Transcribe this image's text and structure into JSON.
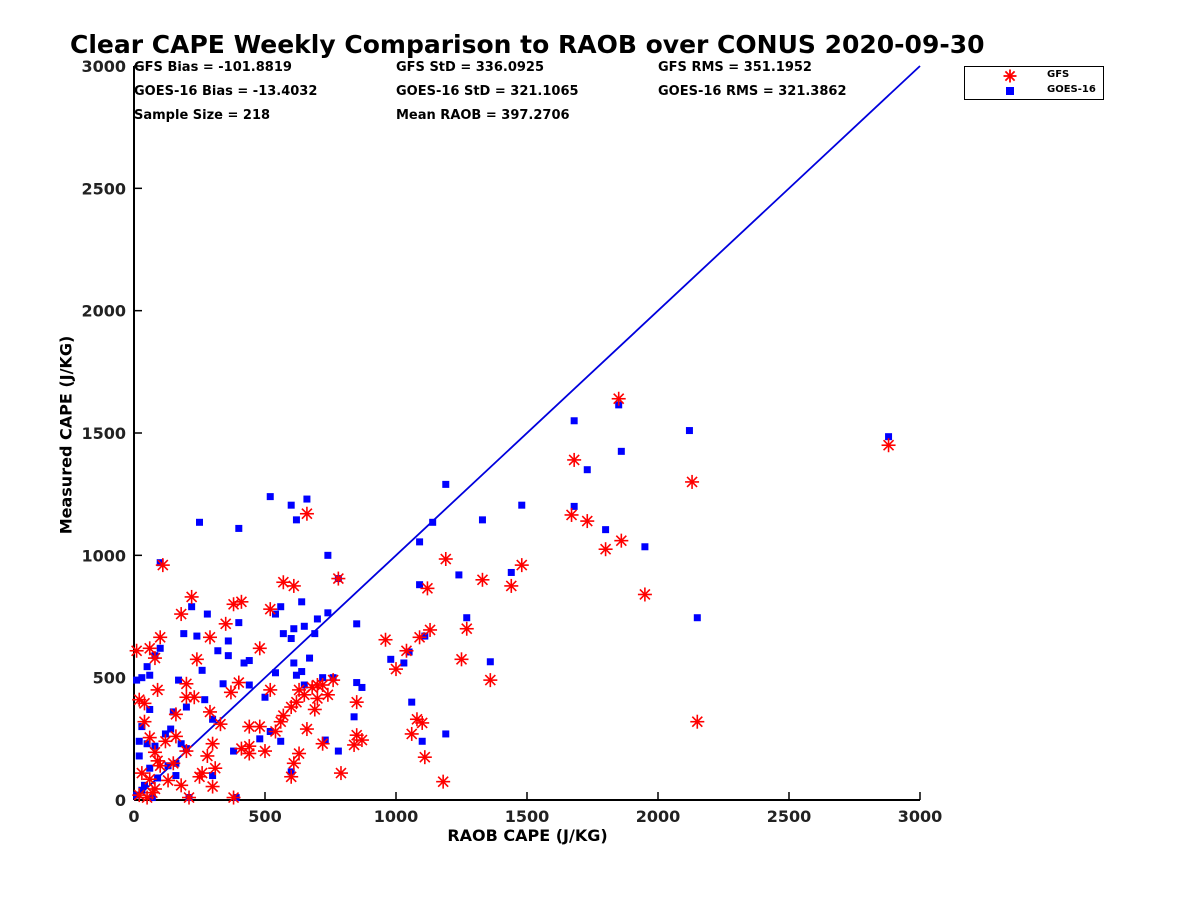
{
  "chart_data": {
    "type": "scatter",
    "title": "Clear CAPE Weekly Comparison to RAOB over CONUS 2020-09-30",
    "xlabel": "RAOB CAPE (J/KG)",
    "ylabel": "Measured CAPE (J/KG)",
    "xlim": [
      0,
      3000
    ],
    "ylim": [
      0,
      3000
    ],
    "xticks": [
      "0",
      "500",
      "1000",
      "1500",
      "2000",
      "2500",
      "3000"
    ],
    "yticks": [
      "0",
      "500",
      "1000",
      "1500",
      "2000",
      "2500",
      "3000"
    ],
    "grid": false,
    "legend_position": "top-right",
    "reference_line": {
      "name": "1:1",
      "color": "#0000dd",
      "x": [
        0,
        3000
      ],
      "y": [
        0,
        3000
      ]
    },
    "stats": {
      "gfs_bias": "GFS Bias = -101.8819",
      "goes_bias": "GOES-16 Bias = -13.4032",
      "sample_size": "Sample Size = 218",
      "gfs_std": "GFS StD = 336.0925",
      "goes_std": "GOES-16 StD = 321.1065",
      "mean_raob": "Mean RAOB = 397.2706",
      "gfs_rms": "GFS RMS = 351.1952",
      "goes_rms": "GOES-16 RMS = 321.3862"
    },
    "series": [
      {
        "name": "GFS",
        "marker": "asterisk",
        "color": "#ff0000",
        "points": [
          [
            1850,
            1640
          ],
          [
            1680,
            1390
          ],
          [
            2130,
            1300
          ],
          [
            2880,
            1450
          ],
          [
            1670,
            1165
          ],
          [
            1730,
            1140
          ],
          [
            1860,
            1060
          ],
          [
            1800,
            1025
          ],
          [
            1950,
            840
          ],
          [
            2150,
            320
          ],
          [
            1480,
            960
          ],
          [
            1330,
            900
          ],
          [
            1440,
            875
          ],
          [
            1270,
            700
          ],
          [
            1250,
            575
          ],
          [
            1360,
            490
          ],
          [
            1190,
            985
          ],
          [
            1120,
            865
          ],
          [
            1130,
            695
          ],
          [
            1090,
            665
          ],
          [
            1040,
            610
          ],
          [
            1000,
            535
          ],
          [
            960,
            655
          ],
          [
            1060,
            270
          ],
          [
            1080,
            330
          ],
          [
            1100,
            315
          ],
          [
            1110,
            175
          ],
          [
            1180,
            75
          ],
          [
            660,
            1170
          ],
          [
            570,
            890
          ],
          [
            610,
            875
          ],
          [
            780,
            905
          ],
          [
            760,
            490
          ],
          [
            850,
            400
          ],
          [
            870,
            245
          ],
          [
            840,
            225
          ],
          [
            850,
            265
          ],
          [
            790,
            110
          ],
          [
            720,
            470
          ],
          [
            740,
            430
          ],
          [
            700,
            470
          ],
          [
            690,
            370
          ],
          [
            700,
            415
          ],
          [
            720,
            230
          ],
          [
            660,
            290
          ],
          [
            620,
            400
          ],
          [
            600,
            380
          ],
          [
            630,
            450
          ],
          [
            650,
            430
          ],
          [
            680,
            460
          ],
          [
            630,
            190
          ],
          [
            610,
            150
          ],
          [
            600,
            95
          ],
          [
            570,
            345
          ],
          [
            520,
            780
          ],
          [
            520,
            450
          ],
          [
            480,
            620
          ],
          [
            440,
            300
          ],
          [
            440,
            220
          ],
          [
            410,
            210
          ],
          [
            400,
            480
          ],
          [
            380,
            800
          ],
          [
            410,
            810
          ],
          [
            370,
            440
          ],
          [
            350,
            720
          ],
          [
            330,
            310
          ],
          [
            290,
            665
          ],
          [
            290,
            360
          ],
          [
            300,
            230
          ],
          [
            280,
            180
          ],
          [
            300,
            55
          ],
          [
            240,
            575
          ],
          [
            230,
            420
          ],
          [
            200,
            420
          ],
          [
            200,
            475
          ],
          [
            220,
            830
          ],
          [
            180,
            760
          ],
          [
            160,
            350
          ],
          [
            160,
            260
          ],
          [
            150,
            150
          ],
          [
            120,
            240
          ],
          [
            110,
            960
          ],
          [
            100,
            665
          ],
          [
            90,
            450
          ],
          [
            80,
            580
          ],
          [
            60,
            620
          ],
          [
            10,
            610
          ],
          [
            20,
            410
          ],
          [
            40,
            395
          ],
          [
            40,
            320
          ],
          [
            60,
            255
          ],
          [
            80,
            195
          ],
          [
            90,
            160
          ],
          [
            30,
            110
          ],
          [
            60,
            85
          ],
          [
            80,
            45
          ],
          [
            20,
            20
          ],
          [
            50,
            10
          ],
          [
            70,
            30
          ],
          [
            100,
            140
          ],
          [
            130,
            80
          ],
          [
            180,
            60
          ],
          [
            210,
            10
          ],
          [
            250,
            95
          ],
          [
            200,
            200
          ],
          [
            260,
            110
          ],
          [
            310,
            130
          ],
          [
            380,
            10
          ],
          [
            440,
            190
          ],
          [
            500,
            200
          ],
          [
            540,
            280
          ],
          [
            560,
            320
          ],
          [
            480,
            300
          ]
        ]
      },
      {
        "name": "GOES-16",
        "marker": "square",
        "color": "#0000ff",
        "points": [
          [
            1850,
            1615
          ],
          [
            1680,
            1550
          ],
          [
            2120,
            1510
          ],
          [
            2880,
            1485
          ],
          [
            1730,
            1350
          ],
          [
            1860,
            1425
          ],
          [
            1680,
            1200
          ],
          [
            1800,
            1105
          ],
          [
            1950,
            1035
          ],
          [
            2150,
            745
          ],
          [
            1480,
            1205
          ],
          [
            1330,
            1145
          ],
          [
            1440,
            930
          ],
          [
            1190,
            1290
          ],
          [
            1140,
            1135
          ],
          [
            1090,
            1055
          ],
          [
            1240,
            920
          ],
          [
            1090,
            880
          ],
          [
            1110,
            670
          ],
          [
            1270,
            745
          ],
          [
            1360,
            565
          ],
          [
            1050,
            605
          ],
          [
            980,
            575
          ],
          [
            1030,
            560
          ],
          [
            1060,
            400
          ],
          [
            1100,
            240
          ],
          [
            1190,
            270
          ],
          [
            660,
            1230
          ],
          [
            520,
            1240
          ],
          [
            600,
            1205
          ],
          [
            620,
            1145
          ],
          [
            740,
            1000
          ],
          [
            780,
            905
          ],
          [
            740,
            765
          ],
          [
            850,
            720
          ],
          [
            700,
            740
          ],
          [
            690,
            680
          ],
          [
            640,
            810
          ],
          [
            650,
            710
          ],
          [
            610,
            700
          ],
          [
            600,
            660
          ],
          [
            610,
            560
          ],
          [
            620,
            510
          ],
          [
            640,
            525
          ],
          [
            650,
            470
          ],
          [
            670,
            580
          ],
          [
            760,
            500
          ],
          [
            850,
            480
          ],
          [
            870,
            460
          ],
          [
            720,
            500
          ],
          [
            560,
            790
          ],
          [
            540,
            760
          ],
          [
            570,
            680
          ],
          [
            440,
            570
          ],
          [
            420,
            560
          ],
          [
            400,
            725
          ],
          [
            400,
            1110
          ],
          [
            360,
            650
          ],
          [
            320,
            610
          ],
          [
            360,
            590
          ],
          [
            340,
            475
          ],
          [
            300,
            330
          ],
          [
            270,
            410
          ],
          [
            260,
            530
          ],
          [
            240,
            670
          ],
          [
            220,
            790
          ],
          [
            190,
            680
          ],
          [
            200,
            380
          ],
          [
            170,
            490
          ],
          [
            150,
            360
          ],
          [
            140,
            290
          ],
          [
            180,
            230
          ],
          [
            200,
            210
          ],
          [
            160,
            150
          ],
          [
            130,
            140
          ],
          [
            100,
            970
          ],
          [
            100,
            620
          ],
          [
            80,
            590
          ],
          [
            60,
            510
          ],
          [
            50,
            545
          ],
          [
            30,
            500
          ],
          [
            10,
            490
          ],
          [
            20,
            240
          ],
          [
            50,
            230
          ],
          [
            80,
            220
          ],
          [
            60,
            370
          ],
          [
            30,
            300
          ],
          [
            20,
            180
          ],
          [
            60,
            130
          ],
          [
            90,
            90
          ],
          [
            40,
            60
          ],
          [
            10,
            20
          ],
          [
            70,
            10
          ],
          [
            30,
            40
          ],
          [
            120,
            270
          ],
          [
            160,
            100
          ],
          [
            210,
            10
          ],
          [
            250,
            1135
          ],
          [
            280,
            760
          ],
          [
            300,
            100
          ],
          [
            380,
            200
          ],
          [
            390,
            10
          ],
          [
            440,
            470
          ],
          [
            500,
            420
          ],
          [
            520,
            280
          ],
          [
            560,
            240
          ],
          [
            480,
            250
          ],
          [
            600,
            115
          ],
          [
            730,
            245
          ],
          [
            780,
            200
          ],
          [
            840,
            340
          ],
          [
            540,
            520
          ]
        ]
      }
    ]
  }
}
